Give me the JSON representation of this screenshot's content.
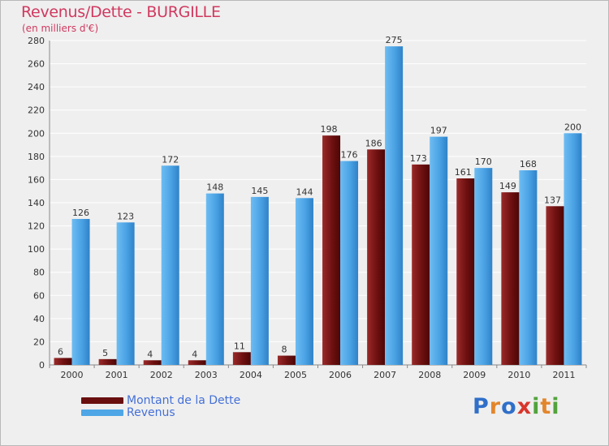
{
  "chart_data": {
    "type": "bar",
    "title": "Revenus/Dette - BURGILLE",
    "subtitle": "(en milliers d'€)",
    "categories": [
      "2000",
      "2001",
      "2002",
      "2003",
      "2004",
      "2005",
      "2006",
      "2007",
      "2008",
      "2009",
      "2010",
      "2011"
    ],
    "series": [
      {
        "name": "Montant de la Dette",
        "color": "#7a1515",
        "values": [
          6,
          5,
          4,
          4,
          11,
          8,
          198,
          186,
          173,
          161,
          149,
          137
        ]
      },
      {
        "name": "Revenus",
        "color": "#4ea6e6",
        "values": [
          126,
          123,
          172,
          148,
          145,
          144,
          176,
          275,
          197,
          170,
          168,
          200
        ]
      }
    ],
    "ylim": [
      0,
      280
    ],
    "yticks": [
      0,
      20,
      40,
      60,
      80,
      100,
      120,
      140,
      160,
      180,
      200,
      220,
      240,
      260,
      280
    ],
    "grid": true,
    "legend_position": "bottom-left"
  },
  "logo": {
    "letters": [
      {
        "ch": "P",
        "color": "#2f6fc9"
      },
      {
        "ch": "r",
        "color": "#e3862b"
      },
      {
        "ch": "o",
        "color": "#2f6fc9"
      },
      {
        "ch": "x",
        "color": "#d8362c"
      },
      {
        "ch": "i",
        "color": "#52a33b"
      },
      {
        "ch": "t",
        "color": "#e3862b"
      },
      {
        "ch": "i",
        "color": "#52a33b"
      }
    ]
  }
}
